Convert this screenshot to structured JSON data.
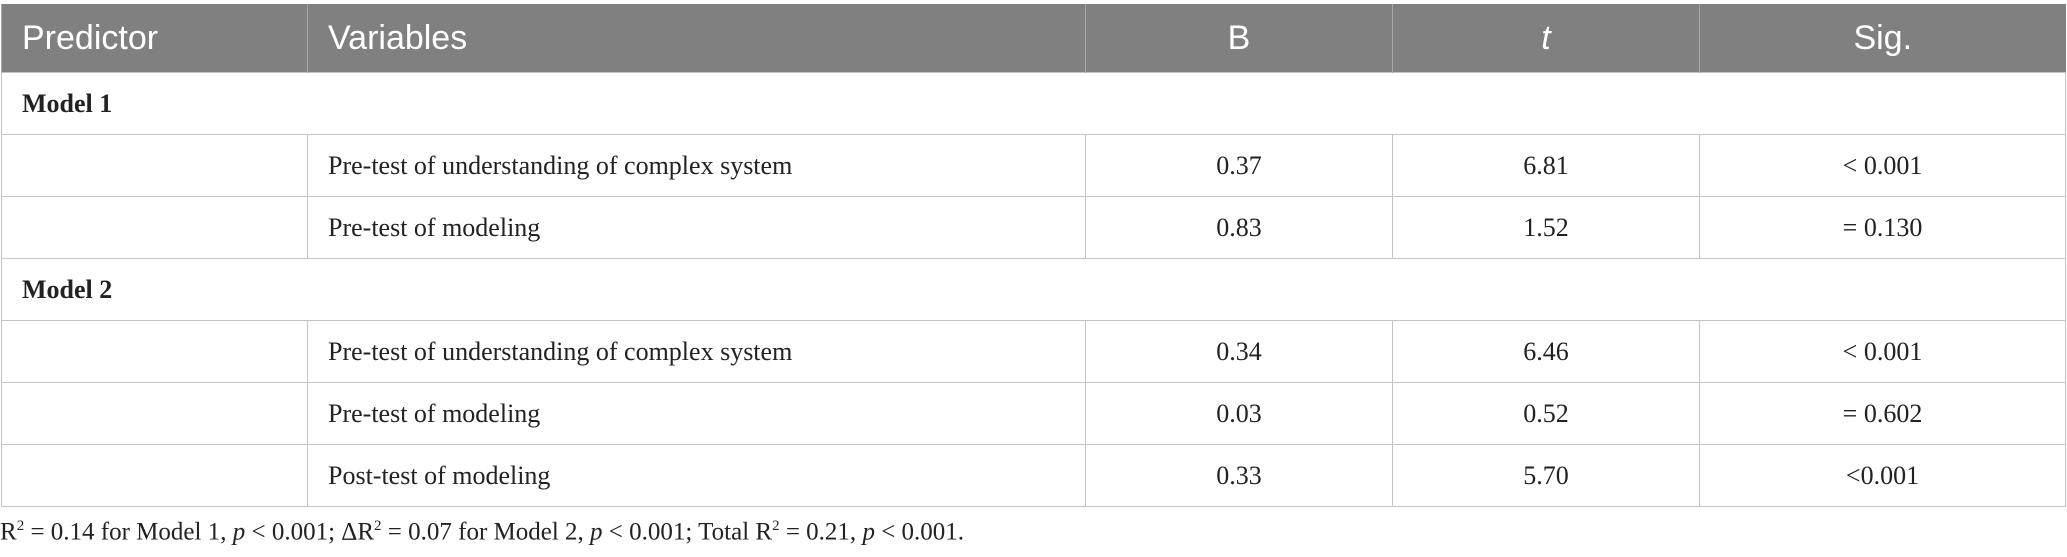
{
  "table": {
    "header": [
      "Predictor",
      "Variables",
      "B",
      "t",
      "Sig."
    ],
    "groups": [
      {
        "label": "Model 1",
        "rows": [
          [
            "Pre-test of understanding of complex system",
            "0.37",
            "6.81",
            "< 0.001"
          ],
          [
            "Pre-test of modeling",
            "0.83",
            "1.52",
            "= 0.130"
          ]
        ]
      },
      {
        "label": "Model 2",
        "rows": [
          [
            "Pre-test of understanding of complex system",
            "0.34",
            "6.46",
            "< 0.001"
          ],
          [
            "Pre-test of modeling",
            "0.03",
            "0.52",
            "= 0.602"
          ],
          [
            "Post-test of modeling",
            "0.33",
            "5.70",
            "<0.001"
          ]
        ]
      }
    ]
  },
  "footnote": [
    "R",
    "2",
    " = 0.14 for Model 1, ",
    "p",
    " < 0.001; ΔR",
    "2",
    " = 0.07 for Model 2, ",
    "p",
    " < 0.001; Total R",
    "2",
    " = 0.21, ",
    "p",
    " < 0.001."
  ]
}
